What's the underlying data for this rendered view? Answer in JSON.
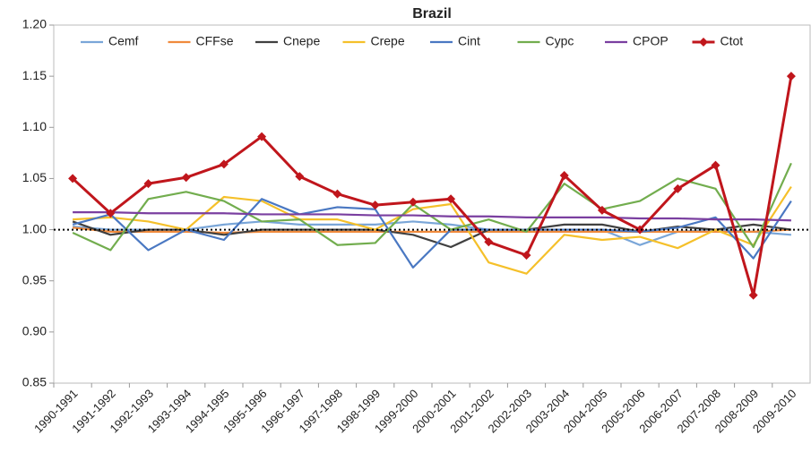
{
  "chart_data": {
    "type": "line",
    "title": "Brazil",
    "categories": [
      "1990-1991",
      "1991-1992",
      "1992-1993",
      "1993-1994",
      "1994-1995",
      "1995-1996",
      "1996-1997",
      "1997-1998",
      "1998-1999",
      "1999-2000",
      "2000-2001",
      "2001-2002",
      "2002-2003",
      "2003-2004",
      "2004-2005",
      "2005-2006",
      "2006-2007",
      "2007-2008",
      "2008-2009",
      "2009-2010"
    ],
    "series": [
      {
        "name": "Cemf",
        "color": "#7aa6d8",
        "values": [
          1.003,
          1.0,
          1.0,
          1.0,
          1.005,
          1.008,
          1.005,
          1.005,
          1.005,
          1.008,
          1.005,
          1.0,
          1.0,
          1.0,
          1.0,
          0.985,
          0.998,
          1.0,
          0.998,
          0.995
        ]
      },
      {
        "name": "CFFse",
        "color": "#f08a3c",
        "values": [
          1.002,
          0.998,
          0.998,
          0.998,
          0.997,
          0.998,
          0.998,
          0.998,
          0.998,
          0.998,
          0.998,
          0.998,
          0.998,
          0.998,
          0.998,
          0.998,
          0.998,
          0.998,
          0.998,
          1.0
        ]
      },
      {
        "name": "Cnepe",
        "color": "#404040",
        "values": [
          1.008,
          0.995,
          1.0,
          1.0,
          0.995,
          1.0,
          1.0,
          1.0,
          1.0,
          0.995,
          0.983,
          1.0,
          1.0,
          1.005,
          1.005,
          0.998,
          1.003,
          1.0,
          1.005,
          1.0
        ]
      },
      {
        "name": "Crepe",
        "color": "#f5c02a",
        "values": [
          1.01,
          1.012,
          1.008,
          1.0,
          1.032,
          1.028,
          1.01,
          1.01,
          1.0,
          1.02,
          1.025,
          0.968,
          0.957,
          0.995,
          0.99,
          0.993,
          0.982,
          1.0,
          0.985,
          1.042
        ]
      },
      {
        "name": "Cint",
        "color": "#4a78c2",
        "values": [
          1.005,
          1.015,
          0.98,
          1.0,
          0.99,
          1.03,
          1.015,
          1.022,
          1.02,
          0.963,
          1.0,
          1.0,
          1.0,
          1.0,
          1.0,
          0.998,
          1.002,
          1.012,
          0.972,
          1.028
        ]
      },
      {
        "name": "Cypc",
        "color": "#72ad4e",
        "values": [
          0.997,
          0.98,
          1.03,
          1.037,
          1.028,
          1.008,
          1.01,
          0.985,
          0.987,
          1.025,
          1.0,
          1.01,
          0.998,
          1.045,
          1.02,
          1.028,
          1.05,
          1.04,
          0.983,
          1.065
        ]
      },
      {
        "name": "CPOP",
        "color": "#7a3fa0",
        "values": [
          1.017,
          1.017,
          1.016,
          1.016,
          1.016,
          1.015,
          1.015,
          1.015,
          1.014,
          1.014,
          1.013,
          1.013,
          1.012,
          1.012,
          1.012,
          1.011,
          1.011,
          1.01,
          1.01,
          1.009
        ]
      },
      {
        "name": "Ctot",
        "color": "#c0161c",
        "marker": "diamond",
        "values": [
          1.05,
          1.016,
          1.045,
          1.051,
          1.064,
          1.091,
          1.052,
          1.035,
          1.024,
          1.027,
          1.03,
          0.988,
          0.975,
          1.053,
          1.019,
          1.0,
          1.04,
          1.063,
          0.936,
          1.15
        ]
      }
    ],
    "ylim": [
      0.85,
      1.2
    ],
    "yticks": [
      0.85,
      {
        "value": 0.9,
        "label": "0.90"
      },
      0.95,
      {
        "value": 1,
        "label": "1.00"
      },
      1.05,
      {
        "value": 1.1,
        "label": "1.10"
      },
      1.15,
      {
        "value": 1.2,
        "label": "1.20"
      }
    ],
    "reference": 1,
    "legend": "top"
  }
}
